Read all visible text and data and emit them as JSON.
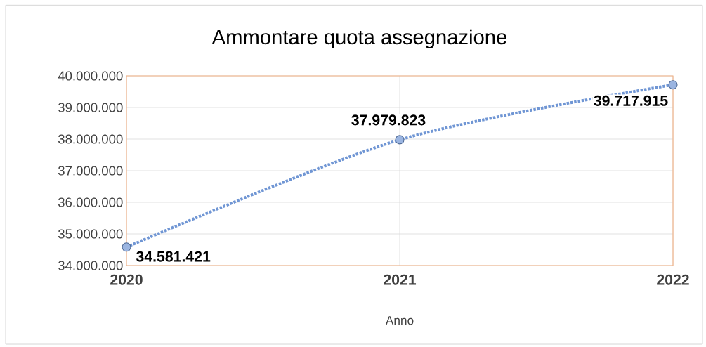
{
  "chart_data": {
    "type": "line",
    "title": "Ammontare quota assegnazione",
    "xlabel": "Anno",
    "x": [
      2020,
      2021,
      2022
    ],
    "values": [
      34581421,
      37979823,
      39717915
    ],
    "value_labels": [
      "34.581.421",
      "37.979.823",
      "39.717.915"
    ],
    "color": "#7096d4",
    "marker": "circle",
    "line_style": "dotted",
    "grid": true,
    "xlim": [
      2020,
      2022
    ],
    "xticks": [
      2020,
      2021,
      2022
    ],
    "ylim": [
      34000000,
      40000000
    ],
    "yticks": [
      {
        "value": 34000000,
        "label": "34.000.000"
      },
      {
        "value": 35000000,
        "label": "35.000.000"
      },
      {
        "value": 36000000,
        "label": "36.000.000"
      },
      {
        "value": 37000000,
        "label": "37.000.000"
      },
      {
        "value": 38000000,
        "label": "38.000.000"
      },
      {
        "value": 39000000,
        "label": "39.000.000"
      },
      {
        "value": 40000000,
        "label": "40.000.000"
      }
    ]
  }
}
